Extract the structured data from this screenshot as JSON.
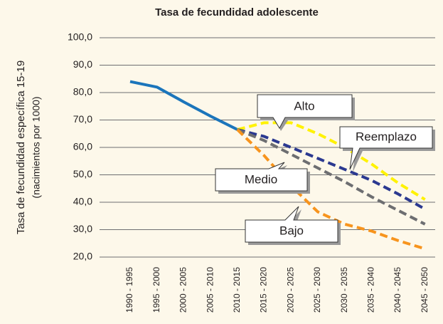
{
  "chart_data": {
    "type": "line",
    "title": "Tasa de fecundidad adolescente",
    "y_label": [
      "Tasa de fecundidad específica 15-19",
      "(nacimientos por 1000)"
    ],
    "categories": [
      "1990 - 1995",
      "1995 - 2000",
      "2000 - 2005",
      "2005 - 2010",
      "2010 - 2015",
      "2015 - 2020",
      "2020 - 2025",
      "2025 - 2030",
      "2030 - 2035",
      "2035 - 2040",
      "2040 - 2045",
      "2045 - 2050"
    ],
    "ylim": [
      20,
      100
    ],
    "yticks": [
      {
        "value": 20,
        "label": "20,0"
      },
      {
        "value": 30,
        "label": "30,0"
      },
      {
        "value": 40,
        "label": "40,0"
      },
      {
        "value": 50,
        "label": "50,0"
      },
      {
        "value": 60,
        "label": "60,0"
      },
      {
        "value": 70,
        "label": "70,0"
      },
      {
        "value": 80,
        "label": "80,0"
      },
      {
        "value": 90,
        "label": "90,0"
      },
      {
        "value": 100,
        "label": "100,0"
      }
    ],
    "grid": true,
    "series": [
      {
        "color": "#1b75bb",
        "dashed": false,
        "values": [
          84,
          82,
          76.6,
          71.4,
          66.5,
          null,
          null,
          null,
          null,
          null,
          null,
          null
        ]
      },
      {
        "name": "Alto",
        "color": "#fff200",
        "dashed": true,
        "values": [
          null,
          null,
          null,
          null,
          66.5,
          69,
          69,
          65,
          60,
          54,
          47,
          41
        ]
      },
      {
        "name": "Reemplazo",
        "color": "#2b3990",
        "dashed": true,
        "values": [
          null,
          null,
          null,
          null,
          66.5,
          64,
          60,
          56,
          52,
          48,
          43,
          37.5
        ]
      },
      {
        "name": "Medio",
        "color": "#6d6e71",
        "dashed": true,
        "values": [
          null,
          null,
          null,
          null,
          66.5,
          62.5,
          57.5,
          52.5,
          47.5,
          42,
          37,
          32
        ]
      },
      {
        "name": "Bajo",
        "color": "#f7941d",
        "dashed": true,
        "values": [
          null,
          null,
          null,
          null,
          66.5,
          57,
          46,
          36.5,
          32,
          29.5,
          26,
          23
        ]
      }
    ]
  }
}
